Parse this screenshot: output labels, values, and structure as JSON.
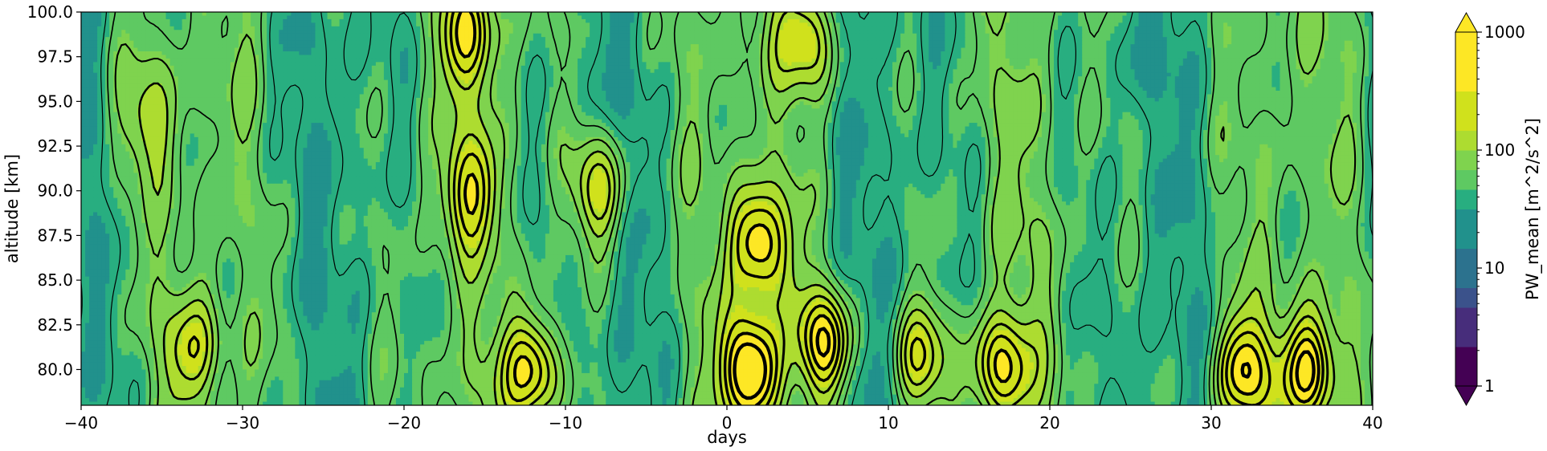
{
  "chart_data": {
    "type": "contour",
    "xlabel": "days",
    "ylabel": "altitude [km]",
    "xlim": [
      -40,
      40
    ],
    "ylim": [
      78,
      100
    ],
    "x_ticks": [
      -40,
      -30,
      -20,
      -10,
      0,
      10,
      20,
      30,
      40
    ],
    "x_tick_labels": [
      "−40",
      "−30",
      "−20",
      "−10",
      "0",
      "10",
      "20",
      "30",
      "40"
    ],
    "y_ticks": [
      80,
      82.5,
      85,
      87.5,
      90,
      92.5,
      95,
      97.5,
      100
    ],
    "y_tick_labels": [
      "80.0",
      "82.5",
      "85.0",
      "87.5",
      "90.0",
      "92.5",
      "95.0",
      "97.5",
      "100.0"
    ],
    "grid": false,
    "colorbar": {
      "label": "PW_mean [m^2/s^2]",
      "scale": "log",
      "range": [
        1,
        1000
      ],
      "ticks": [
        1,
        10,
        100,
        1000
      ],
      "tick_labels": [
        "1",
        "10",
        "100",
        "1000"
      ],
      "extend": "both",
      "colormap": "viridis",
      "colors": [
        "#440154",
        "#472d7b",
        "#3b528b",
        "#2c728e",
        "#21918c",
        "#28ae80",
        "#5ec962",
        "#addc30",
        "#fde725"
      ]
    },
    "contour_lines": {
      "color": "#000000",
      "linewidth_increases_with_value": true
    },
    "features": [
      {
        "day": -33,
        "altitude": 81,
        "level": 150
      },
      {
        "day": -36,
        "altitude": 94,
        "level": 120
      },
      {
        "day": -16,
        "altitude": 90,
        "level": 200
      },
      {
        "day": -16,
        "altitude": 98.5,
        "level": 220
      },
      {
        "day": -12,
        "altitude": 80,
        "level": 380
      },
      {
        "day": -8,
        "altitude": 90,
        "level": 250
      },
      {
        "day": 2,
        "altitude": 87,
        "level": 450
      },
      {
        "day": 1.5,
        "altitude": 80,
        "level": 800
      },
      {
        "day": 6,
        "altitude": 81.5,
        "level": 400
      },
      {
        "day": 5,
        "altitude": 98.5,
        "level": 220
      },
      {
        "day": 12,
        "altitude": 80.5,
        "level": 230
      },
      {
        "day": 17,
        "altitude": 80,
        "level": 300
      },
      {
        "day": 20,
        "altitude": 93.5,
        "level": 50
      },
      {
        "day": 25,
        "altitude": 98,
        "level": 40
      },
      {
        "day": 32,
        "altitude": 80,
        "level": 350
      },
      {
        "day": 36,
        "altitude": 80,
        "level": 450
      }
    ]
  }
}
